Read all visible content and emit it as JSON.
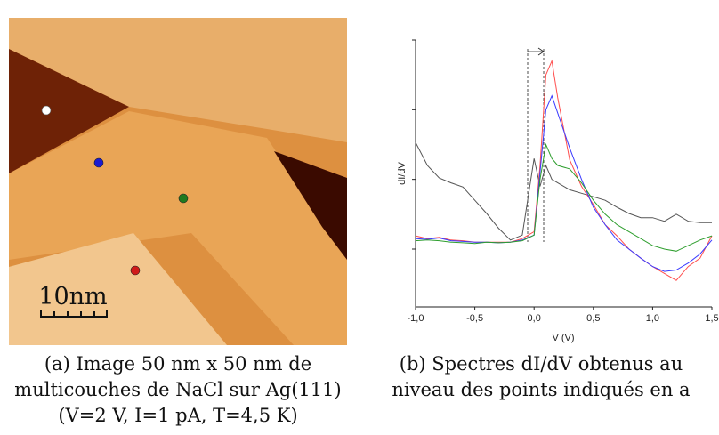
{
  "figure_a": {
    "scale_bar_label": "10nm",
    "caption": [
      "(a) Image 50 nm x 50 nm de",
      "multicouches de NaCl sur Ag(111)",
      "(V=2 V, I=1 pA, T=4,5 K)"
    ]
  },
  "chart_data": {
    "type": "line",
    "caption": [
      "(b) Spectres dI/dV obtenus au",
      "niveau des points indiqués en a"
    ],
    "x_label": "V (V)",
    "y_label": "dI/dV",
    "x": [
      -1.0,
      -0.9,
      -0.8,
      -0.7,
      -0.6,
      -0.5,
      -0.4,
      -0.3,
      -0.2,
      -0.1,
      0.0,
      0.05,
      0.1,
      0.15,
      0.2,
      0.3,
      0.4,
      0.5,
      0.6,
      0.7,
      0.8,
      0.9,
      1.0,
      1.1,
      1.2,
      1.3,
      1.4,
      1.5
    ],
    "series": [
      {
        "color": "#555555",
        "values": [
          1.53,
          1.2,
          1.02,
          0.95,
          0.89,
          0.7,
          0.51,
          0.3,
          0.13,
          0.2,
          1.3,
          0.9,
          1.2,
          1.0,
          0.95,
          0.85,
          0.8,
          0.75,
          0.7,
          0.6,
          0.51,
          0.45,
          0.45,
          0.4,
          0.5,
          0.4,
          0.38,
          0.38
        ]
      },
      {
        "color": "#ff4d4d",
        "values": [
          0.19,
          0.15,
          0.17,
          0.13,
          0.12,
          0.1,
          0.1,
          0.1,
          0.1,
          0.15,
          0.25,
          1.2,
          2.5,
          2.7,
          2.17,
          1.28,
          0.9,
          0.64,
          0.35,
          0.19,
          0.0,
          -0.13,
          -0.25,
          -0.35,
          -0.45,
          -0.25,
          -0.13,
          0.19
        ]
      },
      {
        "color": "#3b3bff",
        "values": [
          0.15,
          0.14,
          0.16,
          0.12,
          0.11,
          0.1,
          0.1,
          0.09,
          0.1,
          0.13,
          0.2,
          1.1,
          2.0,
          2.2,
          1.95,
          1.45,
          1.0,
          0.6,
          0.35,
          0.13,
          0.0,
          -0.13,
          -0.25,
          -0.32,
          -0.3,
          -0.2,
          -0.07,
          0.13
        ]
      },
      {
        "color": "#2e9e2e",
        "values": [
          0.12,
          0.13,
          0.12,
          0.1,
          0.09,
          0.08,
          0.1,
          0.09,
          0.1,
          0.12,
          0.2,
          1.0,
          1.5,
          1.3,
          1.2,
          1.15,
          0.95,
          0.7,
          0.5,
          0.35,
          0.25,
          0.15,
          0.05,
          0.0,
          -0.03,
          0.05,
          0.13,
          0.19
        ]
      }
    ],
    "xlim": [
      -1.0,
      1.5
    ],
    "xticks": [
      {
        "value": -1.0,
        "label": "-1,0"
      },
      {
        "value": -0.5,
        "label": "-0,5"
      },
      {
        "value": 0.0,
        "label": "0,0"
      },
      {
        "value": 0.5,
        "label": "0,5"
      },
      {
        "value": 1.0,
        "label": "1,0"
      },
      {
        "value": 1.5,
        "label": "1,5"
      }
    ],
    "ylim": [
      -0.83,
      3.0
    ],
    "yticks": [
      0,
      1,
      2,
      3
    ]
  }
}
